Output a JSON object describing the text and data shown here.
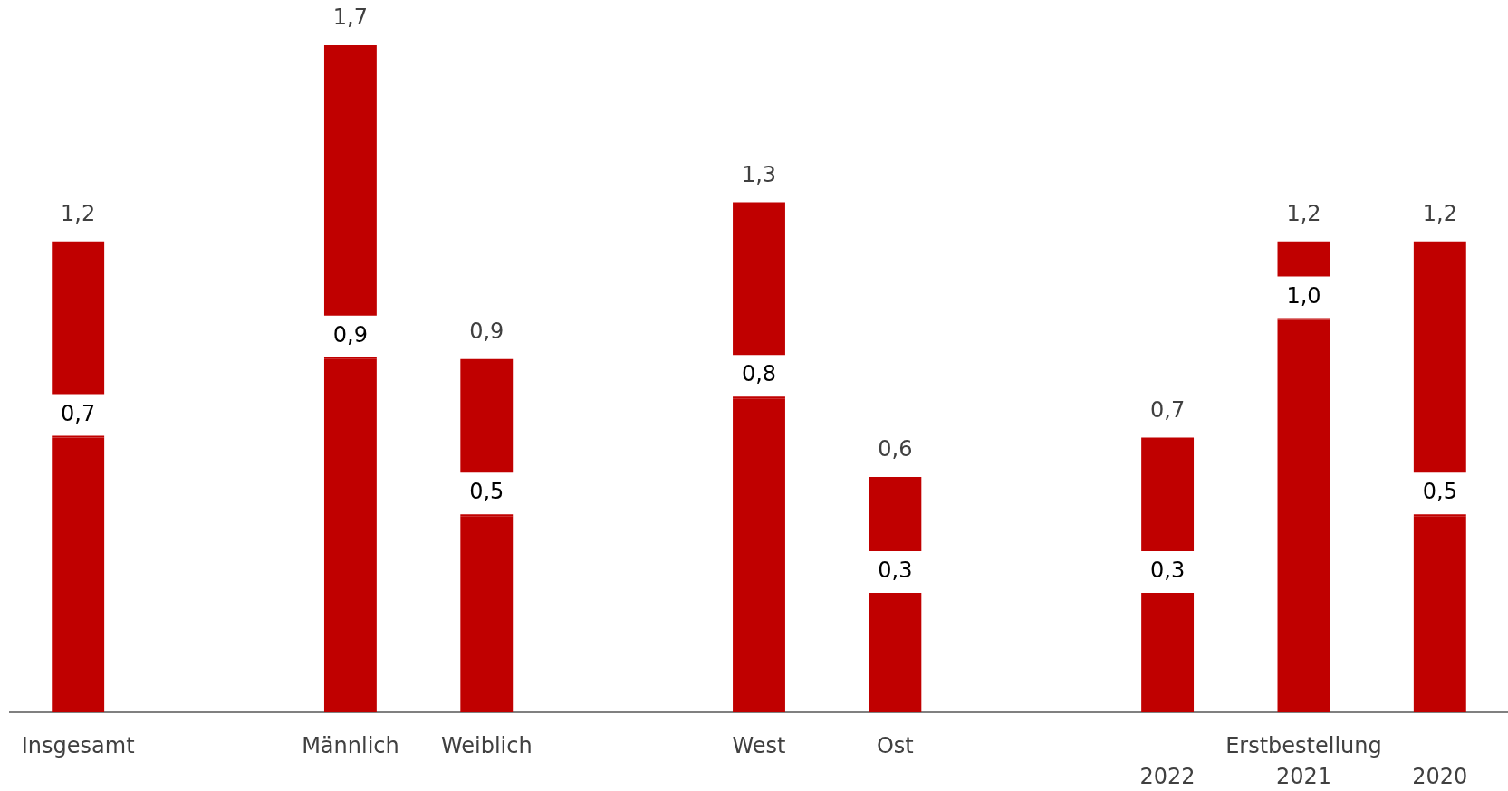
{
  "chart_data": {
    "type": "bar",
    "stacked": true,
    "categories": [
      "Insgesamt",
      null,
      "Männlich",
      "Weiblich",
      null,
      "West",
      "Ost",
      null,
      "2022",
      "2021",
      "2020"
    ],
    "series": [
      {
        "color": "#c00000",
        "values": [
          0.7,
          null,
          0.9,
          0.5,
          null,
          0.8,
          0.3,
          null,
          0.3,
          1.0,
          0.5
        ],
        "value_labels": [
          "0,7",
          null,
          "0,9",
          "0,5",
          null,
          "0,8",
          "0,3",
          null,
          "0,3",
          "1,0",
          "0,5"
        ]
      },
      {
        "color": "#c00000",
        "values": [
          0.5,
          null,
          0.8,
          0.4,
          null,
          0.5,
          0.3,
          null,
          0.4,
          0.2,
          0.7
        ]
      }
    ],
    "totals": [
      "1,2",
      null,
      "1,7",
      "0,9",
      null,
      "1,3",
      "0,6",
      null,
      "0,7",
      "1,2",
      "1,2"
    ],
    "annotations": [
      "Erstbestellung"
    ],
    "tick_labels": "x"
  }
}
